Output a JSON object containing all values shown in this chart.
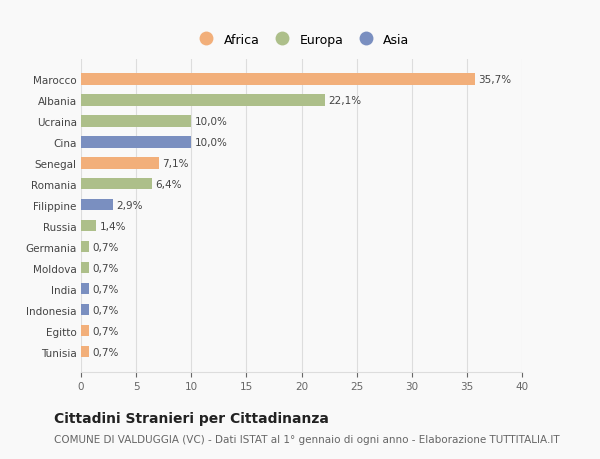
{
  "categories": [
    "Tunisia",
    "Egitto",
    "Indonesia",
    "India",
    "Moldova",
    "Germania",
    "Russia",
    "Filippine",
    "Romania",
    "Senegal",
    "Cina",
    "Ucraina",
    "Albania",
    "Marocco"
  ],
  "values": [
    0.7,
    0.7,
    0.7,
    0.7,
    0.7,
    0.7,
    1.4,
    2.9,
    6.4,
    7.1,
    10.0,
    10.0,
    22.1,
    35.7
  ],
  "continents": [
    "Africa",
    "Africa",
    "Asia",
    "Asia",
    "Europa",
    "Europa",
    "Europa",
    "Asia",
    "Europa",
    "Africa",
    "Asia",
    "Europa",
    "Europa",
    "Africa"
  ],
  "labels": [
    "0,7%",
    "0,7%",
    "0,7%",
    "0,7%",
    "0,7%",
    "0,7%",
    "1,4%",
    "2,9%",
    "6,4%",
    "7,1%",
    "10,0%",
    "10,0%",
    "22,1%",
    "35,7%"
  ],
  "colors": {
    "Africa": "#F2AF7A",
    "Europa": "#ADBF8A",
    "Asia": "#7A8FC0"
  },
  "legend_labels": [
    "Africa",
    "Europa",
    "Asia"
  ],
  "legend_colors": [
    "#F2AF7A",
    "#ADBF8A",
    "#7A8FC0"
  ],
  "xlim": [
    0,
    40
  ],
  "xticks": [
    0,
    5,
    10,
    15,
    20,
    25,
    30,
    35,
    40
  ],
  "title": "Cittadini Stranieri per Cittadinanza",
  "subtitle": "COMUNE DI VALDUGGIA (VC) - Dati ISTAT al 1° gennaio di ogni anno - Elaborazione TUTTITALIA.IT",
  "background_color": "#f9f9f9",
  "bar_height": 0.55,
  "grid_color": "#dddddd",
  "label_fontsize": 7.5,
  "tick_fontsize": 7.5,
  "title_fontsize": 10,
  "subtitle_fontsize": 7.5
}
